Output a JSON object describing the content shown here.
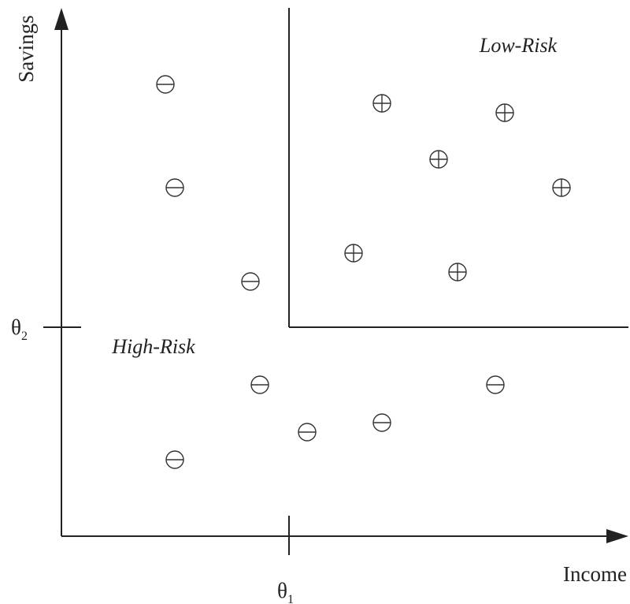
{
  "diagram": {
    "axis_x_label": "Income",
    "axis_y_label": "Savings",
    "threshold_x": {
      "symbol": "θ",
      "subscript": "1"
    },
    "threshold_y": {
      "symbol": "θ",
      "subscript": "2"
    },
    "regions": {
      "low_risk_label": "Low-Risk",
      "high_risk_label": "High-Risk"
    },
    "marker_types": {
      "plus": "low-risk",
      "minus": "high-risk"
    }
  }
}
